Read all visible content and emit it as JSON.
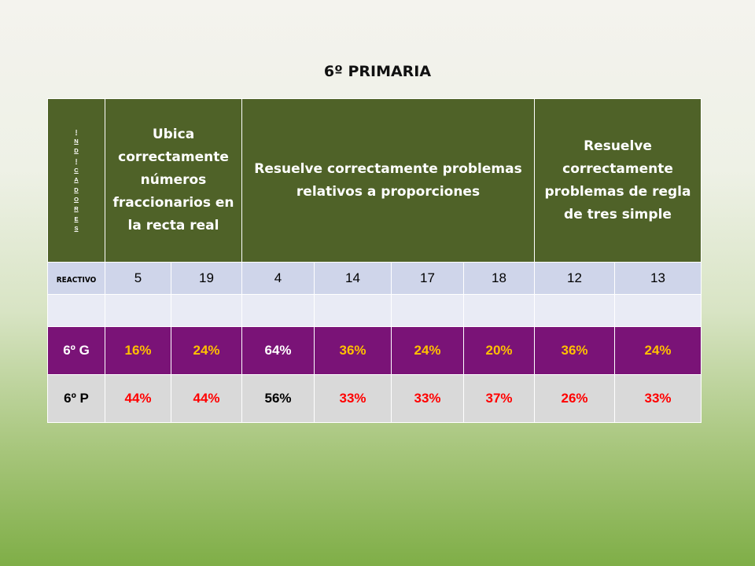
{
  "title": "6º PRIMARIA",
  "header": {
    "indicadores_letters": [
      "I",
      "N",
      "D",
      "I",
      "C",
      "A",
      "D",
      "O",
      "R",
      "E",
      "S"
    ],
    "col1": "Ubica correctamente números fraccionarios en la recta real",
    "col2": "Resuelve correctamente problemas relativos a proporciones",
    "col3": "Resuelve correctamente problemas de regla de tres simple"
  },
  "reactivo": {
    "label": "REACTIVO",
    "values": [
      "5",
      "19",
      "4",
      "14",
      "17",
      "18",
      "12",
      "13"
    ]
  },
  "rows": [
    {
      "label": "6º G",
      "values": [
        "16%",
        "24%",
        "64%",
        "36%",
        "24%",
        "20%",
        "36%",
        "24%"
      ],
      "colors": [
        "#ffc000",
        "#ffc000",
        "#ffffff",
        "#ffc000",
        "#ffc000",
        "#ffc000",
        "#ffc000",
        "#ffc000"
      ]
    },
    {
      "label": "6º P",
      "values": [
        "44%",
        "44%",
        "56%",
        "33%",
        "33%",
        "37%",
        "26%",
        "33%"
      ],
      "colors": [
        "#ff0000",
        "#ff0000",
        "#000000",
        "#ff0000",
        "#ff0000",
        "#ff0000",
        "#ff0000",
        "#ff0000"
      ]
    }
  ],
  "colors": {
    "header_bg": "#4f6228",
    "reactivo_bg": "#cfd5ea",
    "row_g_bg": "#7a1377",
    "row_p_bg": "#d9d9d9"
  }
}
